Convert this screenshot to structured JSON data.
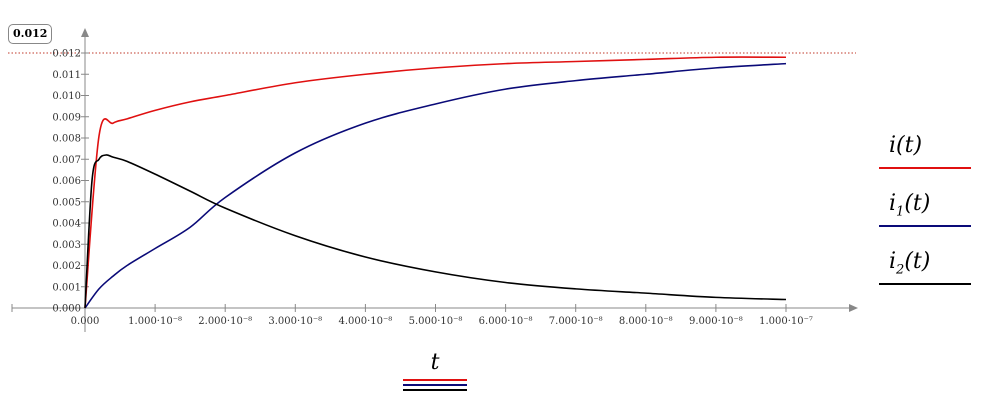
{
  "chart_data": {
    "type": "line",
    "xlabel": "t",
    "xlim": [
      0,
      1e-07
    ],
    "ylim": [
      0,
      0.012
    ],
    "x_ticks": [
      0,
      1e-08,
      2e-08,
      3e-08,
      4e-08,
      5e-08,
      6e-08,
      7e-08,
      8e-08,
      9e-08,
      1e-07
    ],
    "x_tick_labels": [
      "0.000",
      "1.000·10⁻⁸",
      "2.000·10⁻⁸",
      "3.000·10⁻⁸",
      "4.000·10⁻⁸",
      "5.000·10⁻⁸",
      "6.000·10⁻⁸",
      "7.000·10⁻⁸",
      "8.000·10⁻⁸",
      "9.000·10⁻⁸",
      "1.000·10⁻⁷"
    ],
    "y_ticks": [
      0,
      0.001,
      0.002,
      0.003,
      0.004,
      0.005,
      0.006,
      0.007,
      0.008,
      0.009,
      0.01,
      0.011,
      0.012
    ],
    "y_tick_labels": [
      "0.000",
      "0.001",
      "0.002",
      "0.003",
      "0.004",
      "0.005",
      "0.006",
      "0.007",
      "0.008",
      "0.009",
      "0.010",
      "0.011",
      "0.012"
    ],
    "marker": {
      "value": 0.012,
      "label": "0.012",
      "color": "#c0392b"
    },
    "series": [
      {
        "name": "i(t)",
        "color": "#e01010",
        "x": [
          0,
          2e-09,
          4e-09,
          6e-09,
          1e-08,
          1.5e-08,
          2e-08,
          3e-08,
          4e-08,
          5e-08,
          6e-08,
          7e-08,
          8e-08,
          9e-08,
          1e-07
        ],
        "values": [
          0,
          0.0081,
          0.0087,
          0.0089,
          0.0093,
          0.0097,
          0.01,
          0.0106,
          0.011,
          0.0113,
          0.0115,
          0.0116,
          0.0117,
          0.0118,
          0.0118
        ]
      },
      {
        "name": "i1(t)",
        "color": "#0a0a78",
        "x": [
          0,
          2e-09,
          4e-09,
          6e-09,
          1e-08,
          1.5e-08,
          2e-08,
          3e-08,
          4e-08,
          5e-08,
          6e-08,
          7e-08,
          8e-08,
          9e-08,
          1e-07
        ],
        "values": [
          0,
          0.0009,
          0.0015,
          0.002,
          0.0028,
          0.0038,
          0.0052,
          0.0073,
          0.0087,
          0.0096,
          0.0103,
          0.0107,
          0.011,
          0.0113,
          0.0115
        ]
      },
      {
        "name": "i2(t)",
        "color": "#000000",
        "x": [
          0,
          1e-09,
          2e-09,
          3e-09,
          4e-09,
          6e-09,
          1e-08,
          1.5e-08,
          2e-08,
          3e-08,
          4e-08,
          5e-08,
          6e-08,
          7e-08,
          8e-08,
          9e-08,
          1e-07
        ],
        "values": [
          0,
          0.006,
          0.007,
          0.0072,
          0.0071,
          0.0069,
          0.0063,
          0.0055,
          0.0047,
          0.0034,
          0.0024,
          0.0017,
          0.0012,
          0.0009,
          0.0007,
          0.0005,
          0.0004
        ]
      }
    ]
  },
  "legend": {
    "items": [
      {
        "base": "i",
        "sub": "",
        "arg": "(t)",
        "color": "#e01010"
      },
      {
        "base": "i",
        "sub": "1",
        "arg": "(t)",
        "color": "#0a0a78"
      },
      {
        "base": "i",
        "sub": "2",
        "arg": "(t)",
        "color": "#000000"
      }
    ]
  },
  "x_variable": {
    "label": "t",
    "line_colors": [
      "#e01010",
      "#0a0a78",
      "#000000"
    ]
  }
}
